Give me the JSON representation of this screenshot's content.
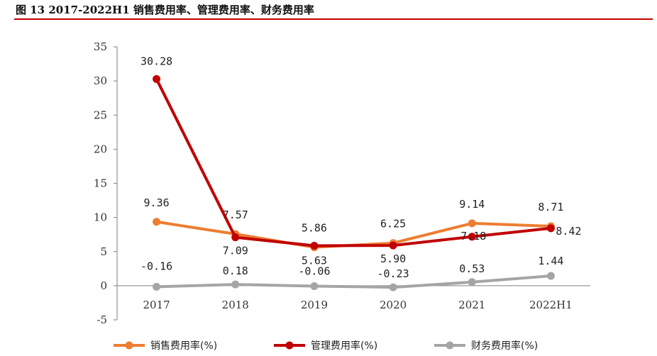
{
  "header": {
    "title": "图 13 2017-2022H1 销售费用率、管理费用率、财务费用率"
  },
  "chart_data": {
    "type": "line",
    "title": "",
    "xlabel": "",
    "ylabel": "",
    "categories": [
      "2017",
      "2018",
      "2019",
      "2020",
      "2021",
      "2022H1"
    ],
    "ylim": [
      -5,
      35
    ],
    "yticks": [
      -5,
      0,
      5,
      10,
      15,
      20,
      25,
      30,
      35
    ],
    "grid": false,
    "legend": "bottom",
    "series": [
      {
        "name": "销售费用率(%)",
        "color": "#ed7d31",
        "values": [
          9.36,
          7.57,
          5.63,
          6.25,
          9.14,
          8.71
        ],
        "labels": [
          "9.36",
          "7.57",
          "5.63",
          "6.25",
          "9.14",
          "8.71"
        ]
      },
      {
        "name": "管理费用率(%)",
        "color": "#c00000",
        "values": [
          30.28,
          7.09,
          5.86,
          5.9,
          7.18,
          8.42
        ],
        "labels": [
          "30.28",
          "7.09",
          "5.86",
          "5.90",
          "7.18",
          "8.42"
        ]
      },
      {
        "name": "财务费用率(%)",
        "color": "#a5a5a5",
        "values": [
          -0.16,
          0.18,
          -0.06,
          -0.23,
          0.53,
          1.44
        ],
        "labels": [
          "-0.16",
          "0.18",
          "-0.06",
          "-0.23",
          "0.53",
          "1.44"
        ]
      }
    ]
  }
}
